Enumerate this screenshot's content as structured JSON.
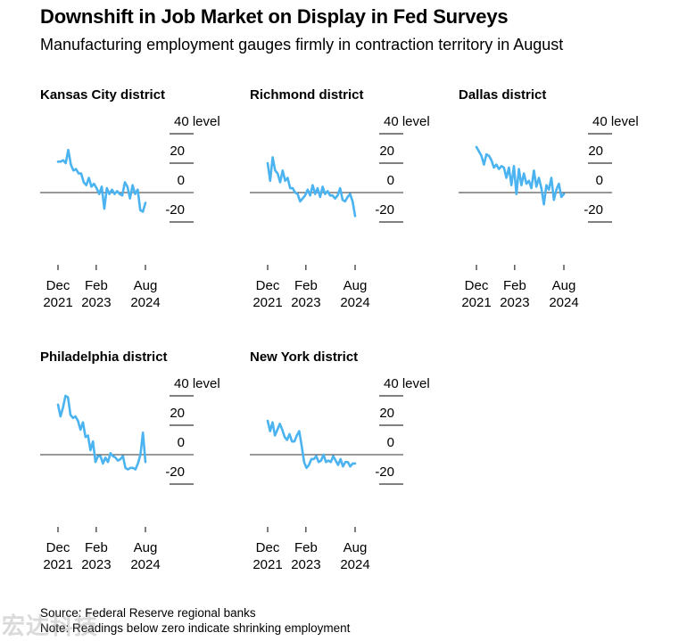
{
  "title": "Downshift in Job Market on Display in Fed Surveys",
  "subtitle": "Manufacturing employment gauges firmly in contraction territory in August",
  "source": "Source: Federal Reserve regional banks",
  "note": "Note: Readings below zero indicate shrinking employment",
  "watermark": "宏达科技",
  "colors": {
    "series": "#4ab3f0",
    "zero_line": "#333333",
    "text": "#000000"
  },
  "chart_data": [
    {
      "type": "line",
      "title": "Kansas City district",
      "ylim": [
        -20,
        40
      ],
      "y_ticks": [
        40,
        20,
        0,
        -20
      ],
      "y_tick_labels": [
        "40 level",
        "20",
        "0",
        "-20"
      ],
      "x_ticks": [
        {
          "x": "2021-12",
          "label": [
            "Dec",
            "2021"
          ]
        },
        {
          "x": "2023-02",
          "label": [
            "Feb",
            "2023"
          ]
        },
        {
          "x": "2024-08",
          "label": [
            "Aug",
            "2024"
          ]
        }
      ],
      "series": [
        {
          "x_start": "2021-12",
          "values": [
            21,
            21,
            22,
            20,
            29,
            19,
            15,
            16,
            13,
            13,
            7,
            5,
            10,
            4,
            6,
            3,
            -1,
            4,
            -11,
            3,
            -1,
            2,
            -1,
            1,
            -1,
            -2,
            7,
            4,
            -4,
            5,
            -1,
            2,
            -12,
            -13,
            -7
          ]
        }
      ]
    },
    {
      "type": "line",
      "title": "Richmond district",
      "ylim": [
        -20,
        40
      ],
      "y_ticks": [
        40,
        20,
        0,
        -20
      ],
      "y_tick_labels": [
        "40 level",
        "20",
        "0",
        "-20"
      ],
      "x_ticks": [
        {
          "x": "2021-12",
          "label": [
            "Dec",
            "2021"
          ]
        },
        {
          "x": "2023-02",
          "label": [
            "Feb",
            "2023"
          ]
        },
        {
          "x": "2024-08",
          "label": [
            "Aug",
            "2024"
          ]
        }
      ],
      "series": [
        {
          "x_start": "2021-12",
          "values": [
            20,
            8,
            24,
            15,
            13,
            7,
            15,
            8,
            10,
            3,
            3,
            0,
            -1,
            -6,
            -4,
            -2,
            2,
            -2,
            5,
            -1,
            3,
            -3,
            4,
            -1,
            1,
            -2,
            -2,
            -4,
            -2,
            3,
            -5,
            -6,
            -3,
            -1,
            -6,
            -16
          ]
        }
      ]
    },
    {
      "type": "line",
      "title": "Dallas district",
      "ylim": [
        -20,
        40
      ],
      "y_ticks": [
        40,
        20,
        0,
        -20
      ],
      "y_tick_labels": [
        "40 level",
        "20",
        "0",
        "-20"
      ],
      "x_ticks": [
        {
          "x": "2021-12",
          "label": [
            "Dec",
            "2021"
          ]
        },
        {
          "x": "2023-02",
          "label": [
            "Feb",
            "2023"
          ]
        },
        {
          "x": "2024-08",
          "label": [
            "Aug",
            "2024"
          ]
        }
      ],
      "series": [
        {
          "x_start": "2021-12",
          "values": [
            31,
            28,
            25,
            19,
            26,
            25,
            22,
            17,
            19,
            16,
            18,
            17,
            10,
            17,
            5,
            18,
            -1,
            16,
            5,
            13,
            6,
            8,
            3,
            15,
            4,
            10,
            3,
            -8,
            5,
            2,
            10,
            -5,
            2,
            6,
            -3,
            -1
          ]
        }
      ]
    },
    {
      "type": "line",
      "title": "Philadelphia district",
      "ylim": [
        -20,
        40
      ],
      "y_ticks": [
        40,
        20,
        0,
        -20
      ],
      "y_tick_labels": [
        "40 level",
        "20",
        "0",
        "-20"
      ],
      "x_ticks": [
        {
          "x": "2021-12",
          "label": [
            "Dec",
            "2021"
          ]
        },
        {
          "x": "2023-02",
          "label": [
            "Feb",
            "2023"
          ]
        },
        {
          "x": "2024-08",
          "label": [
            "Aug",
            "2024"
          ]
        }
      ],
      "series": [
        {
          "x_start": "2021-12",
          "values": [
            34,
            26,
            32,
            40,
            39,
            27,
            25,
            26,
            23,
            17,
            22,
            12,
            13,
            3,
            9,
            -5,
            -1,
            -1,
            -6,
            -2,
            -5,
            1,
            -1,
            -2,
            -4,
            -3,
            -1,
            -9,
            -10,
            -9,
            -9,
            -10,
            -6,
            0,
            15,
            -5
          ]
        }
      ]
    },
    {
      "type": "line",
      "title": "New York district",
      "ylim": [
        -20,
        40
      ],
      "y_ticks": [
        40,
        20,
        0,
        -20
      ],
      "y_tick_labels": [
        "40 level",
        "20",
        "0",
        "-20"
      ],
      "x_ticks": [
        {
          "x": "2021-12",
          "label": [
            "Dec",
            "2021"
          ]
        },
        {
          "x": "2023-02",
          "label": [
            "Feb",
            "2023"
          ]
        },
        {
          "x": "2024-08",
          "label": [
            "Aug",
            "2024"
          ]
        }
      ],
      "series": [
        {
          "x_start": "2021-12",
          "values": [
            23,
            16,
            22,
            13,
            17,
            21,
            17,
            12,
            10,
            14,
            9,
            9,
            13,
            16,
            6,
            -5,
            -9,
            -7,
            -3,
            -3,
            -1,
            -5,
            -4,
            0,
            -5,
            -4,
            -5,
            -1,
            -4,
            -7,
            -3,
            -8,
            -5,
            -5,
            -8,
            -6,
            -6
          ]
        }
      ]
    }
  ]
}
